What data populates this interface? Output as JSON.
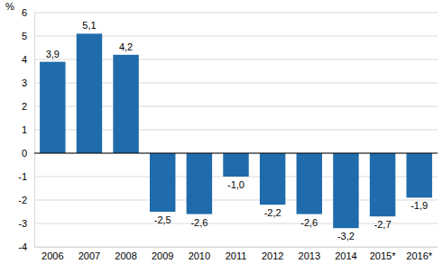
{
  "chart_data": {
    "type": "bar",
    "y_label": "%",
    "categories": [
      "2006",
      "2007",
      "2008",
      "2009",
      "2010",
      "2011",
      "2012",
      "2013",
      "2014",
      "2015*",
      "2016*"
    ],
    "values": [
      3.9,
      5.1,
      4.2,
      -2.5,
      -2.6,
      -1.0,
      -2.2,
      -2.6,
      -3.2,
      -2.7,
      -1.9
    ],
    "value_labels": [
      "3,9",
      "5,1",
      "4,2",
      "-2,5",
      "-2,6",
      "-1,0",
      "-2,2",
      "-2,6",
      "-3,2",
      "-2,7",
      "-1,9"
    ],
    "color": "#1f6bab",
    "ylim": [
      -4,
      6
    ],
    "yticks": [
      -4,
      -3,
      -2,
      -1,
      0,
      1,
      2,
      3,
      4,
      5,
      6
    ],
    "grid": true,
    "data_labels": true
  }
}
